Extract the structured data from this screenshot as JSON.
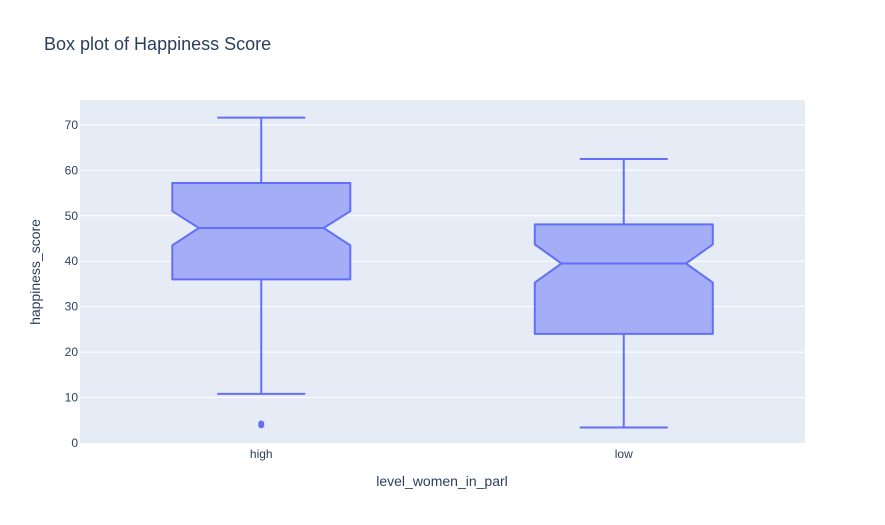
{
  "chart_data": {
    "type": "box",
    "title": "Box plot of Happiness Score",
    "xlabel": "level_women_in_parl",
    "ylabel": "happiness_score",
    "ylim": [
      0,
      75
    ],
    "yticks": [
      0,
      10,
      20,
      30,
      40,
      50,
      60,
      70
    ],
    "grid": true,
    "notched": true,
    "categories": [
      "high",
      "low"
    ],
    "boxes": [
      {
        "category": "high",
        "lower_whisker": 10.8,
        "q1": 36.0,
        "median": 47.3,
        "q3": 57.2,
        "upper_whisker": 71.6,
        "notch_low": 43.5,
        "notch_high": 51.0,
        "outliers": [
          3.9,
          4.3
        ]
      },
      {
        "category": "low",
        "lower_whisker": 3.4,
        "q1": 24.0,
        "median": 39.5,
        "q3": 48.1,
        "upper_whisker": 62.5,
        "notch_low": 35.3,
        "notch_high": 43.7,
        "outliers": []
      }
    ],
    "colors": {
      "fill": "#a4aef7",
      "line": "#636efa",
      "plot_bg": "#e5ecf6",
      "grid": "#ffffff",
      "text": "#2a3f5f"
    }
  }
}
